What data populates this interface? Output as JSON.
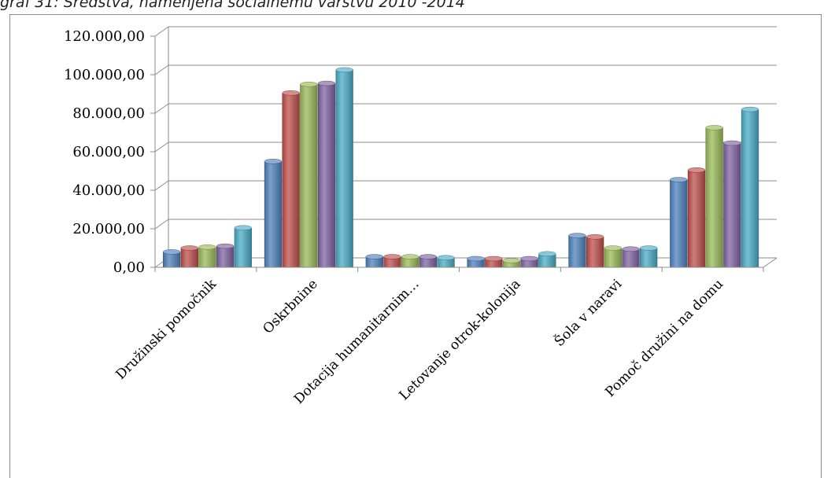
{
  "caption": "graf 31: Sredstva, namenjena socialnemu varstvu 2010 -2014",
  "chart_data": {
    "type": "bar",
    "title": "",
    "xlabel": "",
    "ylabel": "",
    "ylim": [
      0,
      120000
    ],
    "y_ticks": [
      "0,00",
      "20.000,00",
      "40.000,00",
      "60.000,00",
      "80.000,00",
      "100.000,00",
      "120.000,00"
    ],
    "grid": true,
    "legend": "none",
    "three_d": true,
    "categories": [
      "Družinski pomočnik",
      "Oskrbnine",
      "Dotacija humanitarnim…",
      "Letovanje otrok-kolonija",
      "Šola v naravi",
      "Pomoč družini na domu"
    ],
    "series": [
      {
        "color": "#4f81bd",
        "values": [
          8000,
          55000,
          5500,
          4500,
          16500,
          45500
        ]
      },
      {
        "color": "#c0504d",
        "values": [
          10000,
          90500,
          5500,
          4500,
          15800,
          50500
        ]
      },
      {
        "color": "#9bbb59",
        "values": [
          10500,
          95000,
          5500,
          3500,
          10000,
          72500
        ]
      },
      {
        "color": "#8064a2",
        "values": [
          11000,
          95500,
          5500,
          4500,
          9500,
          64500
        ]
      },
      {
        "color": "#4bacc6",
        "values": [
          20500,
          102500,
          5000,
          7000,
          10000,
          82000
        ]
      }
    ]
  }
}
